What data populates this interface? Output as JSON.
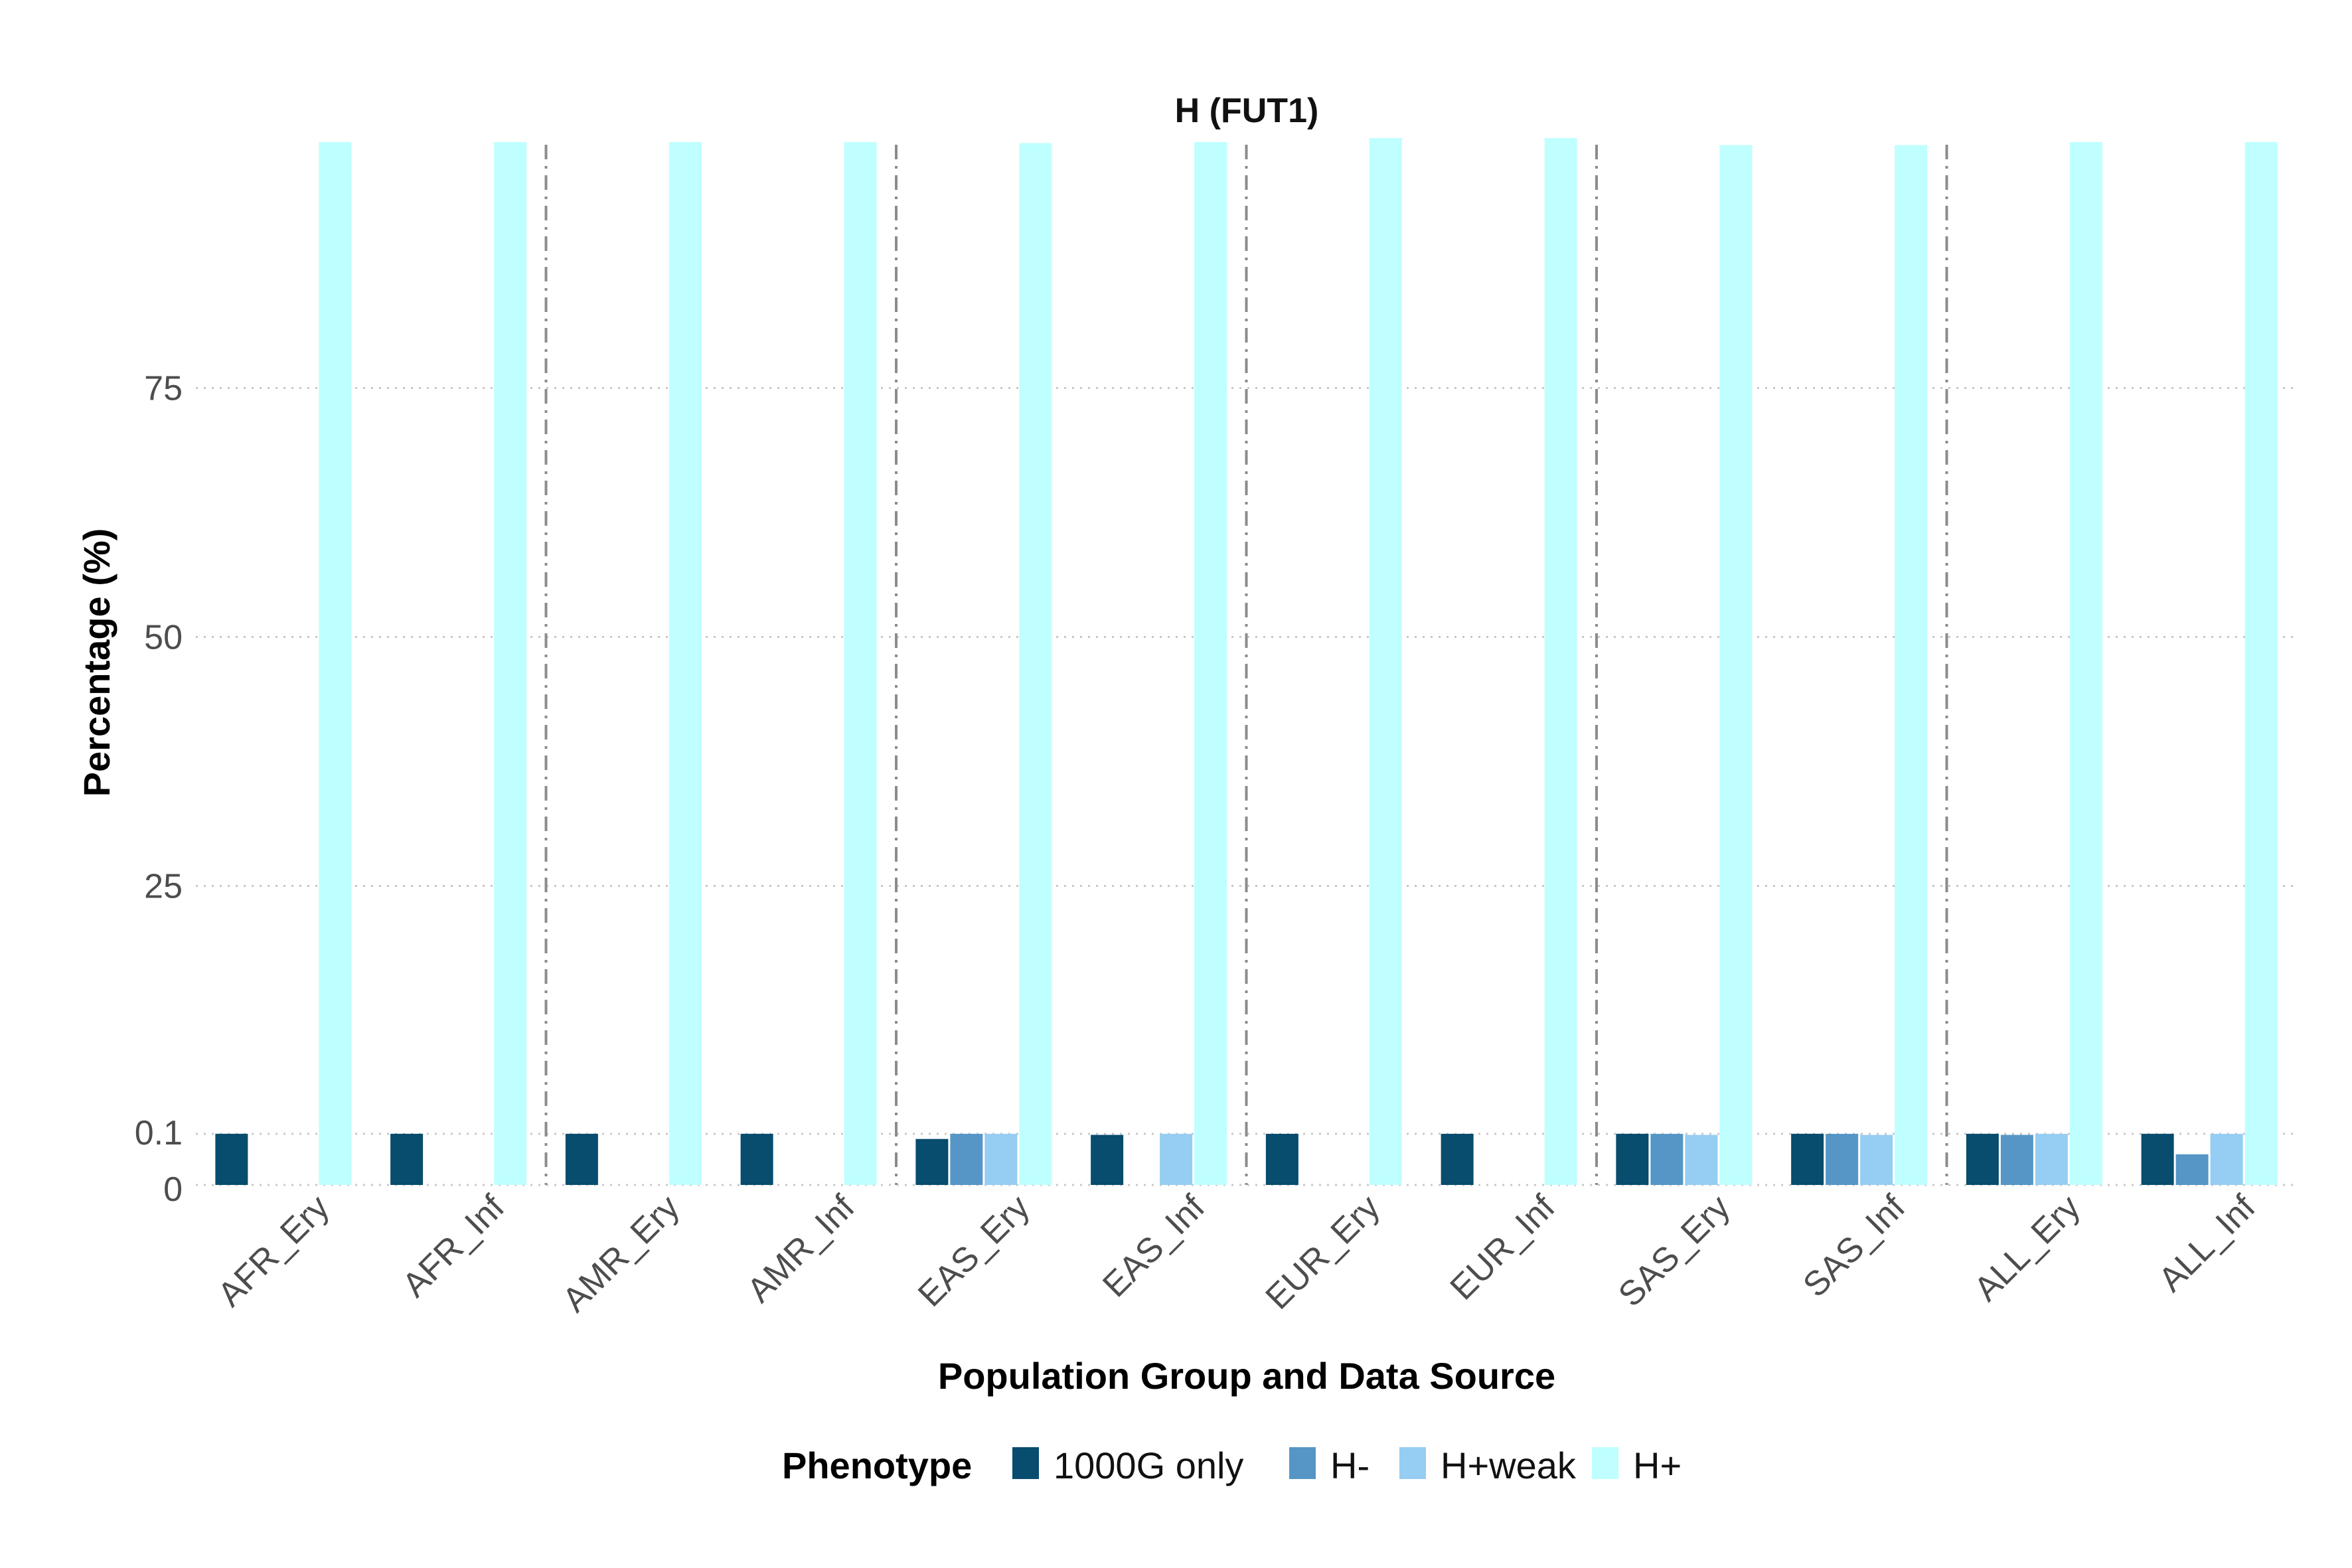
{
  "chart_data": {
    "type": "bar",
    "title": "H (FUT1)",
    "xlabel": "Population Group and Data Source",
    "ylabel": "Percentage (%)",
    "categories": [
      "AFR_Ery",
      "AFR_Inf",
      "AMR_Ery",
      "AMR_Inf",
      "EAS_Ery",
      "EAS_Inf",
      "EUR_Ery",
      "EUR_Inf",
      "SAS_Ery",
      "SAS_Inf",
      "ALL_Ery",
      "ALL_Inf"
    ],
    "yticks": [
      {
        "value": 0,
        "label": "0"
      },
      {
        "value": 0.1,
        "label": "0.1"
      },
      {
        "value": 25,
        "label": "25"
      },
      {
        "value": 50,
        "label": "50"
      },
      {
        "value": 75,
        "label": "75"
      }
    ],
    "y_scale": "piecewise: 0 to 0.1 expanded, 0.1 to 100 linear",
    "ylim": [
      0,
      100
    ],
    "grid": "horizontal dotted",
    "group_separators_after": [
      "AFR_Inf",
      "AMR_Inf",
      "EAS_Inf",
      "EUR_Inf",
      "SAS_Inf"
    ],
    "legend": {
      "title": "Phenotype",
      "position": "bottom"
    },
    "series": [
      {
        "name": "1000G only",
        "color": "#084c6e",
        "values": [
          0.108,
          0.108,
          0.107,
          0.107,
          0.09,
          0.098,
          0.104,
          0.104,
          0.108,
          0.108,
          0.106,
          0.106
        ]
      },
      {
        "name": "H-",
        "color": "#5596c6",
        "values": [
          null,
          null,
          null,
          null,
          0.104,
          null,
          null,
          null,
          0.101,
          0.101,
          0.098,
          0.06
        ]
      },
      {
        "name": "H+weak",
        "color": "#96cdf2",
        "values": [
          null,
          null,
          null,
          null,
          0.106,
          0.106,
          null,
          null,
          0.098,
          0.098,
          0.1,
          0.1
        ]
      },
      {
        "name": "H+",
        "color": "#bfffff",
        "values": [
          99.7,
          99.7,
          99.7,
          99.7,
          99.6,
          99.7,
          100.1,
          100.1,
          99.4,
          99.4,
          99.7,
          99.7
        ]
      }
    ]
  }
}
